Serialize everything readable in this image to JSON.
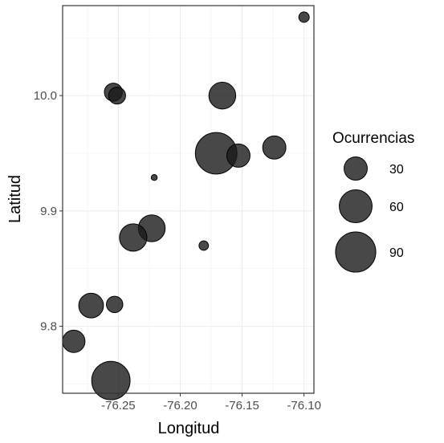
{
  "chart_data": {
    "type": "scatter",
    "title": "",
    "xlabel": "Longitud",
    "ylabel": "Latitud",
    "xlim": [
      -76.295,
      -76.092
    ],
    "ylim": [
      9.742,
      10.078
    ],
    "x_ticks": [
      -76.25,
      -76.2,
      -76.15,
      -76.1
    ],
    "x_tick_labels": [
      "-76.25",
      "-76.20",
      "-76.15",
      "-76.10"
    ],
    "y_ticks": [
      9.8,
      9.9,
      10.0
    ],
    "y_tick_labels": [
      "9.8",
      "9.9",
      "10.0"
    ],
    "grid": true,
    "point_color": "#1a1a1a",
    "point_opacity": 0.8,
    "points": [
      {
        "x": -76.1,
        "y": 10.068,
        "size": 6
      },
      {
        "x": -76.254,
        "y": 10.003,
        "size": 18
      },
      {
        "x": -76.251,
        "y": 10.0,
        "size": 16
      },
      {
        "x": -76.166,
        "y": 10.0,
        "size": 40
      },
      {
        "x": -76.171,
        "y": 9.95,
        "size": 96
      },
      {
        "x": -76.153,
        "y": 9.948,
        "size": 30
      },
      {
        "x": -76.124,
        "y": 9.955,
        "size": 30
      },
      {
        "x": -76.221,
        "y": 9.929,
        "size": 2
      },
      {
        "x": -76.223,
        "y": 9.885,
        "size": 40
      },
      {
        "x": -76.238,
        "y": 9.877,
        "size": 42
      },
      {
        "x": -76.181,
        "y": 9.87,
        "size": 5
      },
      {
        "x": -76.272,
        "y": 9.818,
        "size": 34
      },
      {
        "x": -76.253,
        "y": 9.819,
        "size": 15
      },
      {
        "x": -76.286,
        "y": 9.787,
        "size": 28
      },
      {
        "x": -76.256,
        "y": 9.753,
        "size": 82
      }
    ],
    "legend": {
      "title": "Ocurrencias",
      "position": "right",
      "entries": [
        {
          "label": "30",
          "size": 30
        },
        {
          "label": "60",
          "size": 60
        },
        {
          "label": "90",
          "size": 90
        }
      ]
    }
  }
}
